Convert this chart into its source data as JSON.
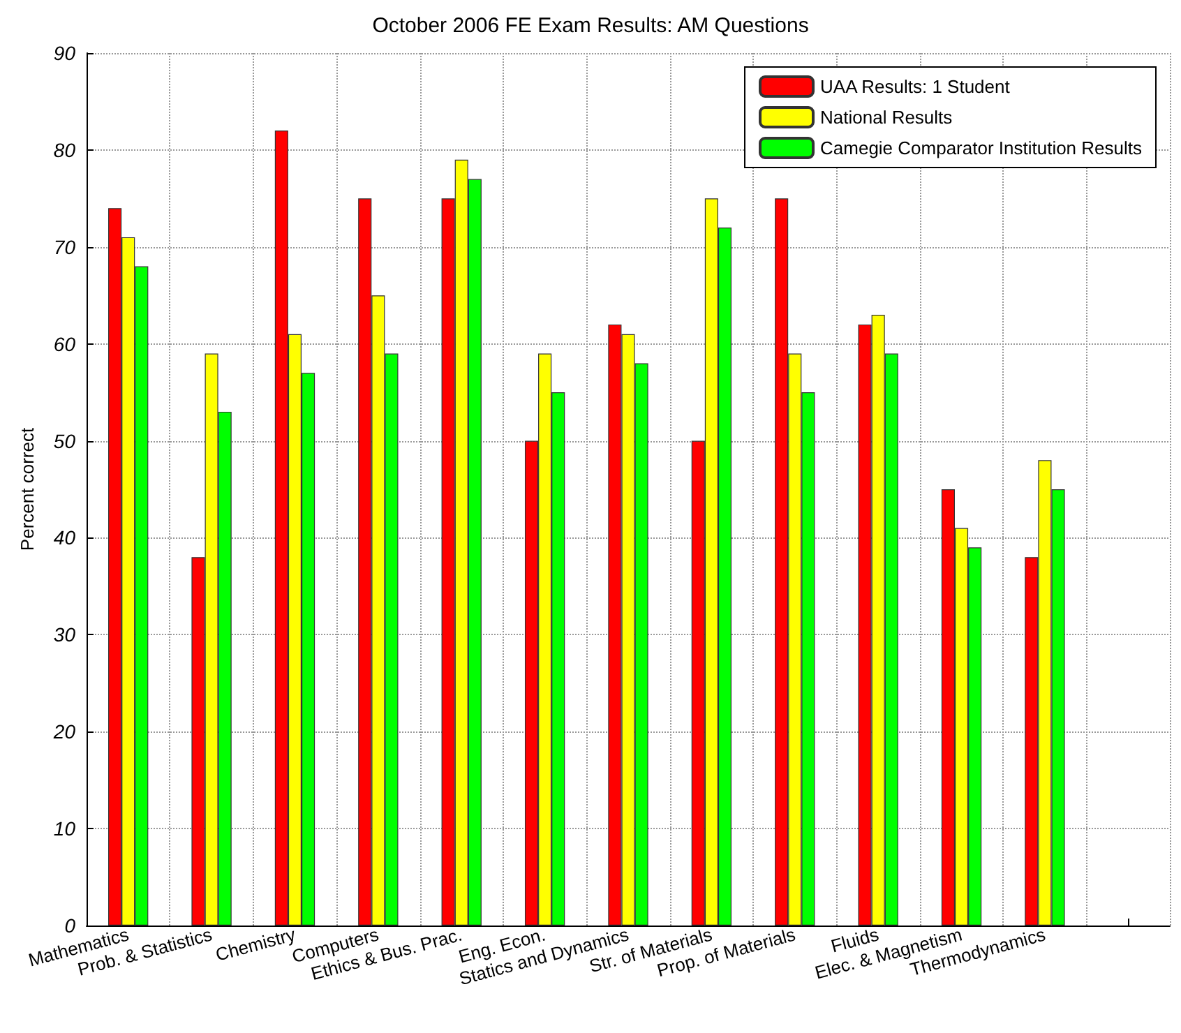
{
  "chart_data": {
    "type": "bar",
    "title": "October 2006 FE Exam Results: AM Questions",
    "ylabel": "Percent correct",
    "categories": [
      "Mathematics",
      "Prob. & Statistics",
      "Chemistry",
      "Computers",
      "Ethics & Bus. Prac.",
      "Eng. Econ.",
      "Statics and Dynamics",
      "Str. of Materials",
      "Prop. of Materials",
      "Fluids",
      "Elec. & Magnetism",
      "Thermodynamics",
      null
    ],
    "series": [
      {
        "name": "UAA Results: 1 Student",
        "color": "#ff0000",
        "values": [
          74,
          38,
          82,
          75,
          75,
          50,
          62,
          50,
          75,
          62,
          45,
          38,
          null
        ]
      },
      {
        "name": "National Results",
        "color": "#ffff00",
        "values": [
          71,
          59,
          61,
          65,
          79,
          59,
          61,
          75,
          59,
          63,
          41,
          48,
          null
        ]
      },
      {
        "name": "Camegie Comparator Institution Results",
        "color": "#00ff00",
        "values": [
          68,
          53,
          57,
          59,
          77,
          55,
          58,
          72,
          55,
          59,
          39,
          45,
          null
        ]
      }
    ],
    "ylim": [
      0,
      90
    ],
    "yticks": [
      0,
      10,
      20,
      30,
      40,
      50,
      60,
      70,
      80,
      90
    ],
    "grid": true,
    "legend": "top right"
  }
}
